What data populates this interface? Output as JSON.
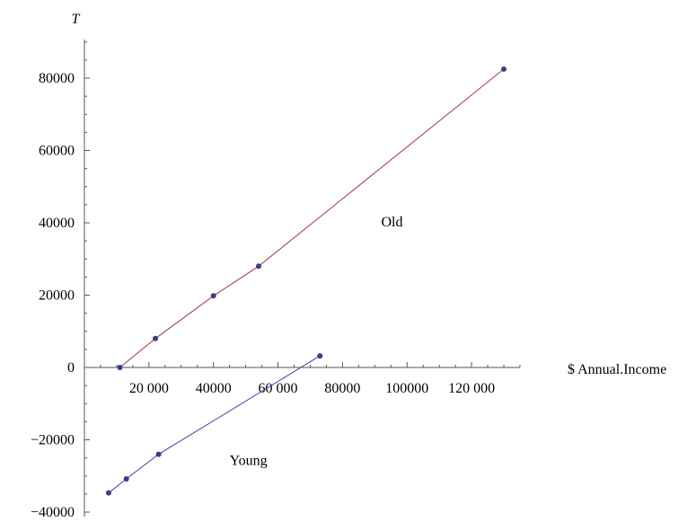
{
  "chart_data": {
    "type": "line",
    "xlabel": "$ Annual.Income",
    "ylabel": "T",
    "xlim": [
      0,
      135000
    ],
    "ylim": [
      -40000,
      90000
    ],
    "x_ticks": [
      20000,
      40000,
      60000,
      80000,
      100000,
      120000
    ],
    "x_tick_labels": [
      "20 000",
      "40000",
      "60 000",
      "80000",
      "100000",
      "120 000"
    ],
    "y_ticks": [
      -40000,
      -20000,
      0,
      20000,
      40000,
      60000,
      80000
    ],
    "y_tick_labels": [
      "−40000",
      "−20000",
      "0",
      "20000",
      "40000",
      "60000",
      "80000"
    ],
    "grid": false,
    "series": [
      {
        "name": "Old",
        "color": "#a0355a",
        "marker_color": "#3b3a8c",
        "label_at": [
          92000,
          39000
        ],
        "points": [
          [
            11000,
            0
          ],
          [
            22000,
            8000
          ],
          [
            40000,
            19800
          ],
          [
            54000,
            28000
          ],
          [
            130000,
            82500
          ]
        ]
      },
      {
        "name": "Young",
        "color": "#3f3fb0",
        "marker_color": "#3b3a8c",
        "label_at": [
          45000,
          -27000
        ],
        "points": [
          [
            7500,
            -34700
          ],
          [
            13000,
            -30800
          ],
          [
            23000,
            -24000
          ],
          [
            73000,
            3200
          ]
        ]
      }
    ]
  }
}
